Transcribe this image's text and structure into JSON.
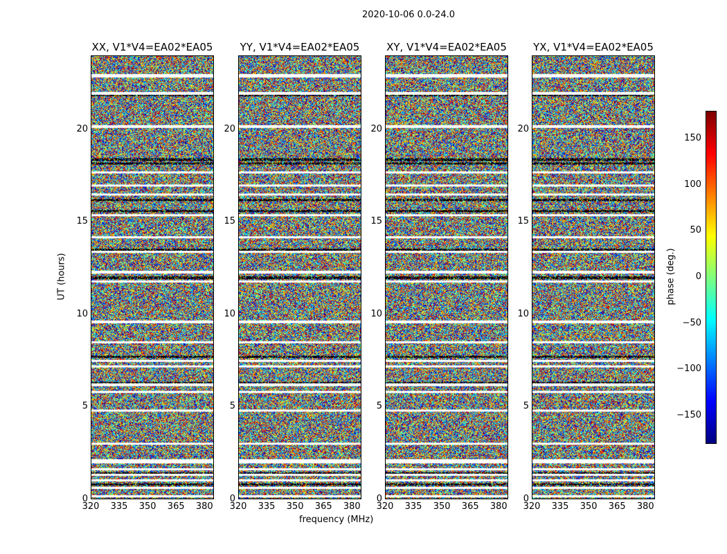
{
  "chart_data": {
    "type": "heatmap",
    "suptitle": "2020-10-06 0.0-24.0",
    "panels": [
      {
        "title": "XX, V1*V4=EA02*EA05"
      },
      {
        "title": "YY, V1*V4=EA02*EA05"
      },
      {
        "title": "XY, V1*V4=EA02*EA05"
      },
      {
        "title": "YX, V1*V4=EA02*EA05"
      }
    ],
    "xlabel": "frequency (MHz)",
    "ylabel": "UT (hours)",
    "xlim": [
      320,
      385
    ],
    "ylim": [
      0,
      24
    ],
    "xticks": [
      "320",
      "335",
      "350",
      "365",
      "380"
    ],
    "xtick_values": [
      320,
      335,
      350,
      365,
      380
    ],
    "yticks": [
      "0",
      "5",
      "10",
      "15",
      "20"
    ],
    "ytick_values": [
      0,
      5,
      10,
      15,
      20
    ],
    "colorbar": {
      "label": "phase (deg.)",
      "range": [
        -180,
        180
      ],
      "ticks": [
        "−150",
        "−100",
        "−50",
        "0",
        "50",
        "100",
        "150"
      ],
      "tick_values": [
        -150,
        -100,
        -50,
        0,
        50,
        100,
        150
      ],
      "colormap": "jet"
    },
    "values_description_note": null
  }
}
